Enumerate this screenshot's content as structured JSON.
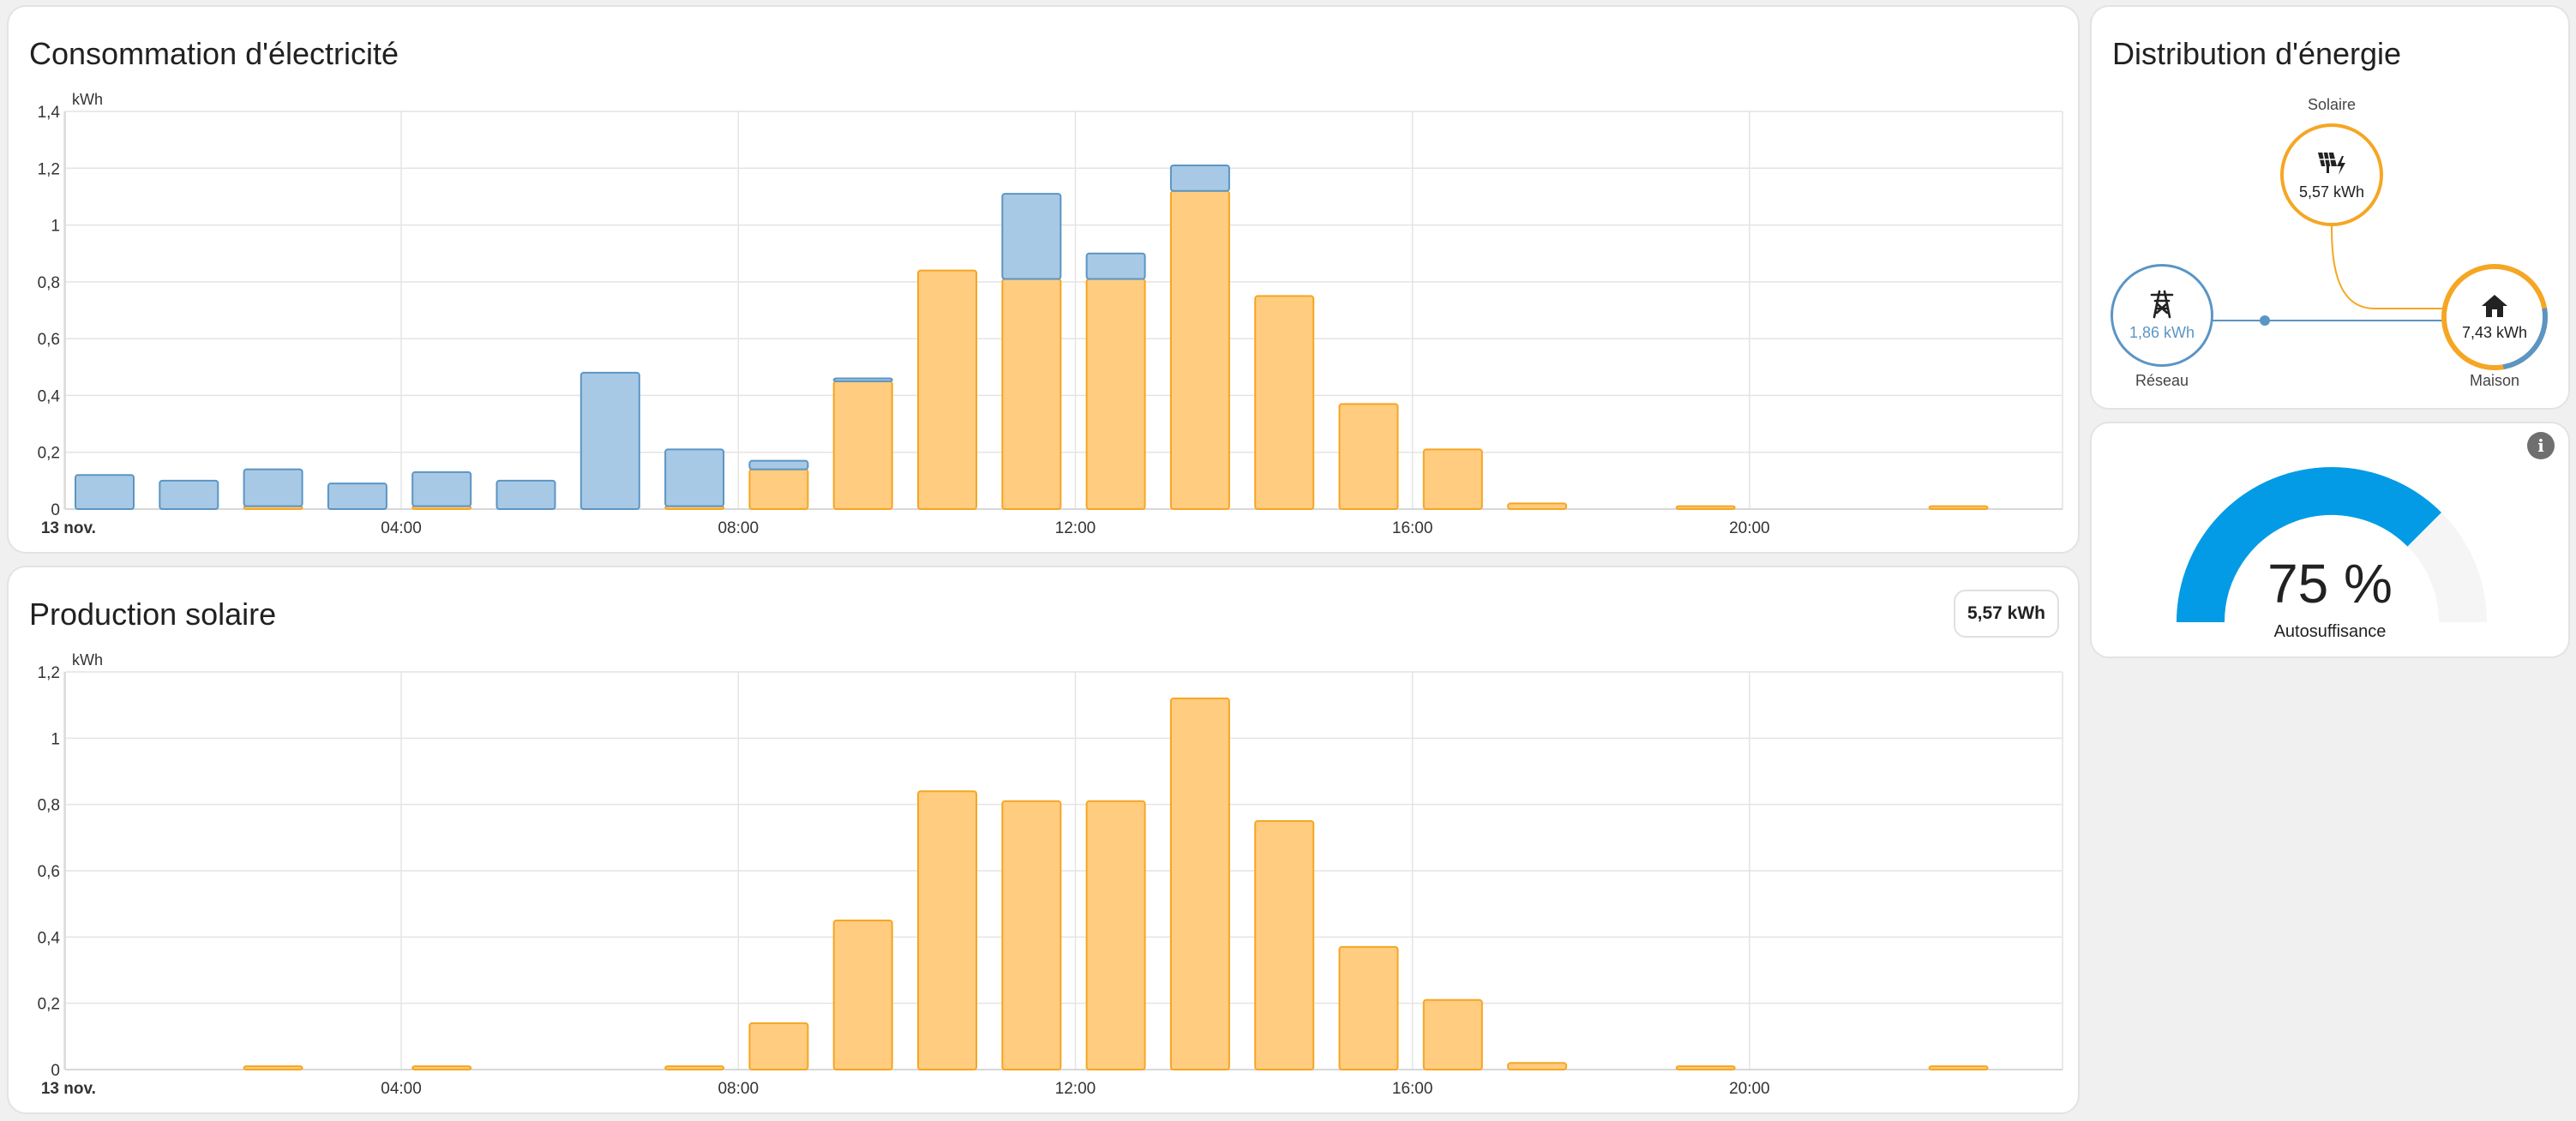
{
  "consumption": {
    "title": "Consommation d'électricité",
    "chart_data": {
      "type": "bar",
      "stacked": true,
      "ylabel": "kWh",
      "ylim": [
        0,
        1.4
      ],
      "yticks": [
        "0",
        "0,2",
        "0,4",
        "0,6",
        "0,8",
        "1",
        "1,2",
        "1,4"
      ],
      "ytick_values": [
        0,
        0.2,
        0.4,
        0.6,
        0.8,
        1.0,
        1.2,
        1.4
      ],
      "xticks": [
        "13 nov.",
        "04:00",
        "08:00",
        "12:00",
        "16:00",
        "20:00"
      ],
      "hours": [
        0,
        1,
        2,
        3,
        4,
        5,
        6,
        7,
        8,
        9,
        10,
        11,
        12,
        13,
        14,
        15,
        16,
        17,
        18,
        19,
        20,
        21,
        22
      ],
      "series": [
        {
          "key": "solar",
          "color": "#ffcc80",
          "stroke": "#f5a623",
          "values": [
            0,
            0,
            0.01,
            0,
            0.01,
            0,
            0,
            0.01,
            0.14,
            0.45,
            0.84,
            0.81,
            0.81,
            1.12,
            0.75,
            0.37,
            0.21,
            0.02,
            0,
            0.01,
            0,
            0,
            0.01
          ]
        },
        {
          "key": "grid",
          "color": "#a8c9e5",
          "stroke": "#5b95c4",
          "values": [
            0.12,
            0.1,
            0.13,
            0.09,
            0.12,
            0.1,
            0.48,
            0.2,
            0.03,
            0.01,
            0,
            0.3,
            0.09,
            0.09,
            0,
            0,
            0,
            0,
            0,
            0,
            0,
            0,
            0
          ]
        }
      ]
    }
  },
  "solar_production": {
    "title": "Production solaire",
    "total_badge": "5,57 kWh",
    "chart_data": {
      "type": "bar",
      "ylabel": "kWh",
      "ylim": [
        0,
        1.2
      ],
      "yticks": [
        "0",
        "0,2",
        "0,4",
        "0,6",
        "0,8",
        "1",
        "1,2"
      ],
      "ytick_values": [
        0,
        0.2,
        0.4,
        0.6,
        0.8,
        1.0,
        1.2
      ],
      "xticks": [
        "13 nov.",
        "04:00",
        "08:00",
        "12:00",
        "16:00",
        "20:00"
      ],
      "hours": [
        0,
        1,
        2,
        3,
        4,
        5,
        6,
        7,
        8,
        9,
        10,
        11,
        12,
        13,
        14,
        15,
        16,
        17,
        18,
        19,
        20,
        21,
        22
      ],
      "series": [
        {
          "key": "solar",
          "color": "#ffcc80",
          "stroke": "#f5a623",
          "values": [
            0,
            0,
            0.01,
            0,
            0.01,
            0,
            0,
            0.01,
            0.14,
            0.45,
            0.84,
            0.81,
            0.81,
            1.12,
            0.75,
            0.37,
            0.21,
            0.02,
            0,
            0.01,
            0,
            0,
            0.01
          ]
        }
      ]
    }
  },
  "distribution": {
    "title": "Distribution d'énergie",
    "solar": {
      "label": "Solaire",
      "value": "5,57 kWh",
      "icon": "solar-panel-icon",
      "color": "#f5a623"
    },
    "grid": {
      "label": "Réseau",
      "value": "1,86 kWh",
      "icon": "transmission-tower-icon",
      "color": "#5b95c4"
    },
    "home": {
      "label": "Maison",
      "value": "7,43 kWh",
      "icon": "home-icon",
      "color": "#f5a623",
      "grid_share": 0.25
    }
  },
  "self_sufficiency": {
    "value": "75 %",
    "fraction": 0.75,
    "label": "Autosuffisance",
    "color": "#039be5",
    "info_icon": "info-icon"
  }
}
